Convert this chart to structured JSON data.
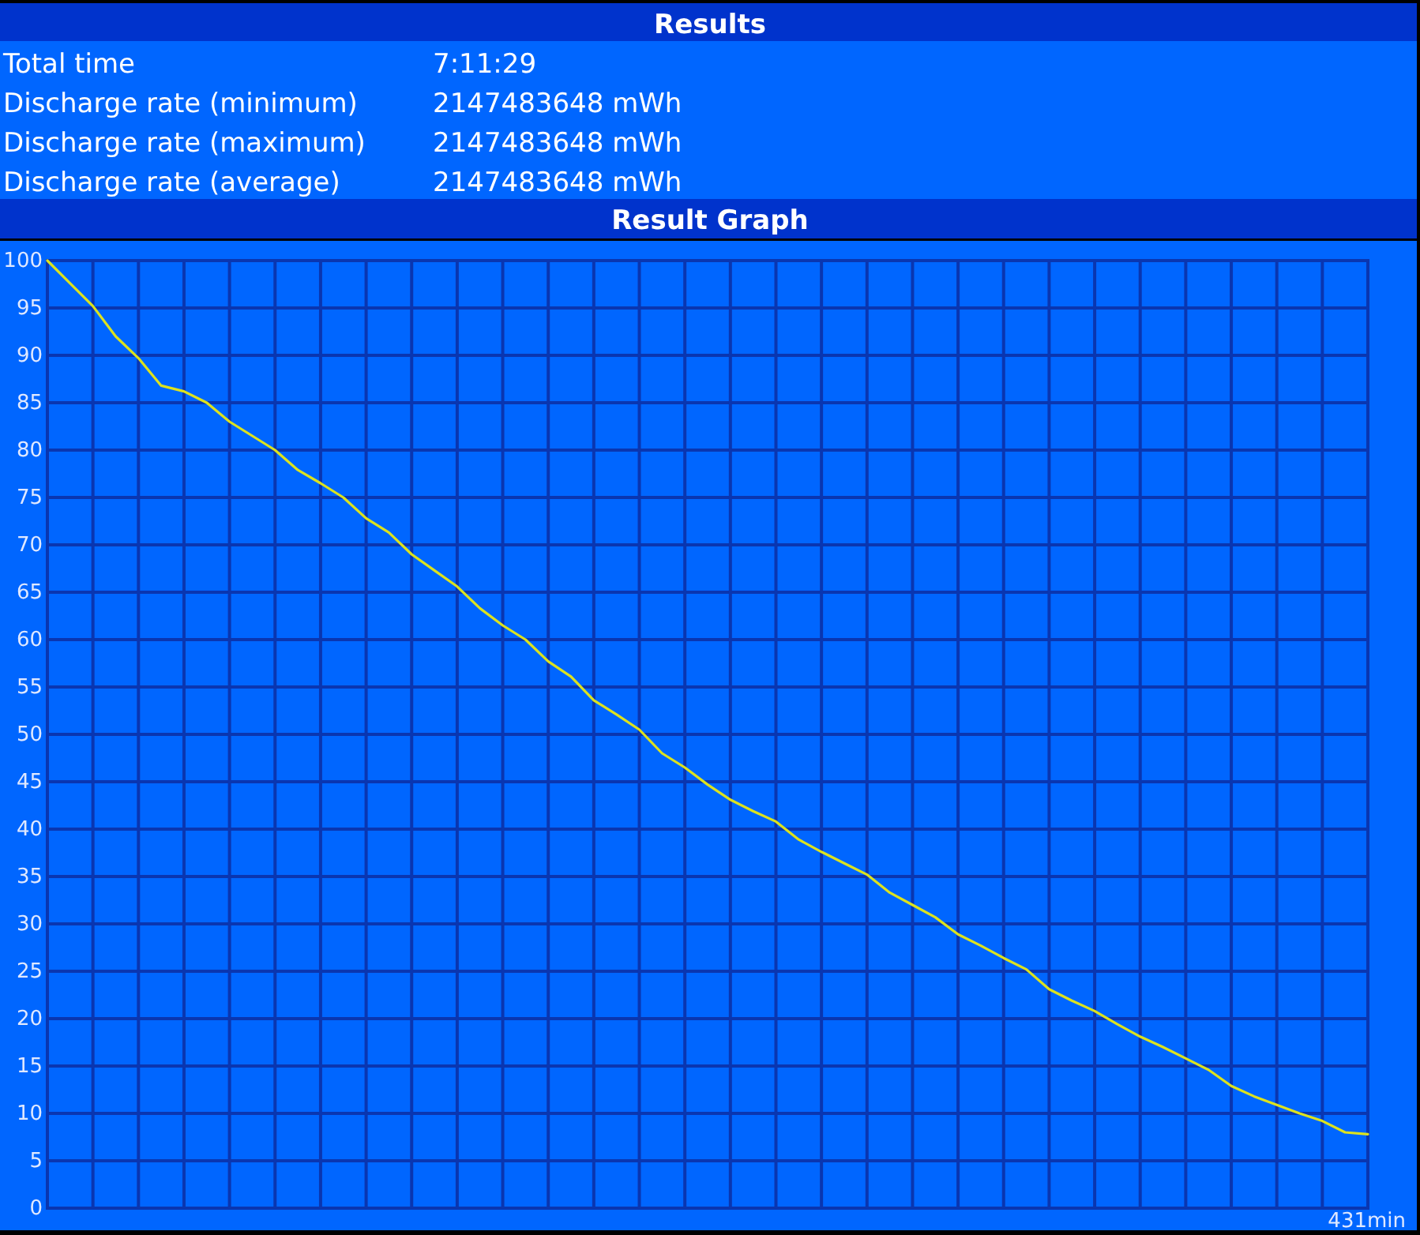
{
  "chart_data": {
    "type": "line",
    "title": "Results",
    "subtitle": "Result Graph",
    "annotations": [
      "Total time",
      "7:11:29",
      "Discharge rate (minimum)",
      "2147483648 mWh",
      "Discharge rate (maximum)",
      "2147483648 mWh",
      "Discharge rate (average)",
      "2147483648 mWh",
      "431min"
    ],
    "categories": [
      null,
      null,
      null,
      null,
      null,
      null,
      null,
      null,
      null,
      null,
      null,
      null,
      null,
      null,
      null,
      null,
      null,
      null,
      null,
      null,
      null,
      null,
      null,
      null,
      null,
      null,
      null,
      null,
      null,
      null,
      null,
      null,
      null,
      null,
      null,
      null,
      null,
      null,
      null,
      null,
      null,
      null,
      null,
      null,
      null,
      null,
      null,
      null,
      null,
      null,
      null,
      null,
      null,
      null,
      null,
      null,
      null,
      null,
      null
    ],
    "series": [
      {
        "color": "#dce21e",
        "values": [
          100,
          97.6,
          95.2,
          92.0,
          89.7,
          86.8,
          86.2,
          85.0,
          83.0,
          81.5,
          80.0,
          77.9,
          76.5,
          75.0,
          72.8,
          71.3,
          69.0,
          67.3,
          65.6,
          63.3,
          61.5,
          60.0,
          57.7,
          56.1,
          53.6,
          52.1,
          50.5,
          48.0,
          46.5,
          44.7,
          43.1,
          41.9,
          40.8,
          38.9,
          37.6,
          36.4,
          35.2,
          33.3,
          32.0,
          30.7,
          28.9,
          27.7,
          26.4,
          25.2,
          23.1,
          21.9,
          20.8,
          19.4,
          18.1,
          17.0,
          15.8,
          14.6,
          12.9,
          11.8,
          10.9,
          10.0,
          9.2,
          8.0,
          7.8
        ]
      }
    ],
    "ylim": [
      0,
      100
    ],
    "yticks": [
      0,
      5,
      10,
      15,
      20,
      25,
      30,
      35,
      40,
      45,
      50,
      55,
      60,
      65,
      70,
      75,
      80,
      85,
      90,
      95,
      100
    ],
    "grid": true
  }
}
